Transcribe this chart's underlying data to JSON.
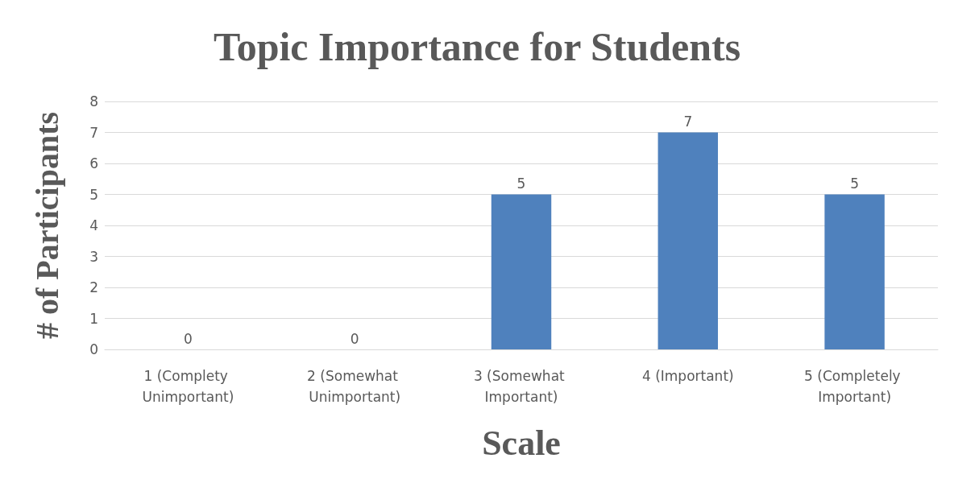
{
  "chart_data": {
    "type": "bar",
    "title": "Topic Importance for Students",
    "xlabel": "Scale",
    "ylabel": "# of Participants",
    "categories": [
      "1 (Complety Unimportant)",
      "2 (Somewhat Unimportant)",
      "3 (Somewhat Important)",
      "4 (Important)",
      "5 (Completely Important)"
    ],
    "values": [
      0,
      0,
      5,
      7,
      5
    ],
    "color": "#4f81bd",
    "ylim": [
      0,
      8
    ],
    "yticks": [
      0,
      1,
      2,
      3,
      4,
      5,
      6,
      7,
      8
    ],
    "grid": "y",
    "data_labels": true
  }
}
